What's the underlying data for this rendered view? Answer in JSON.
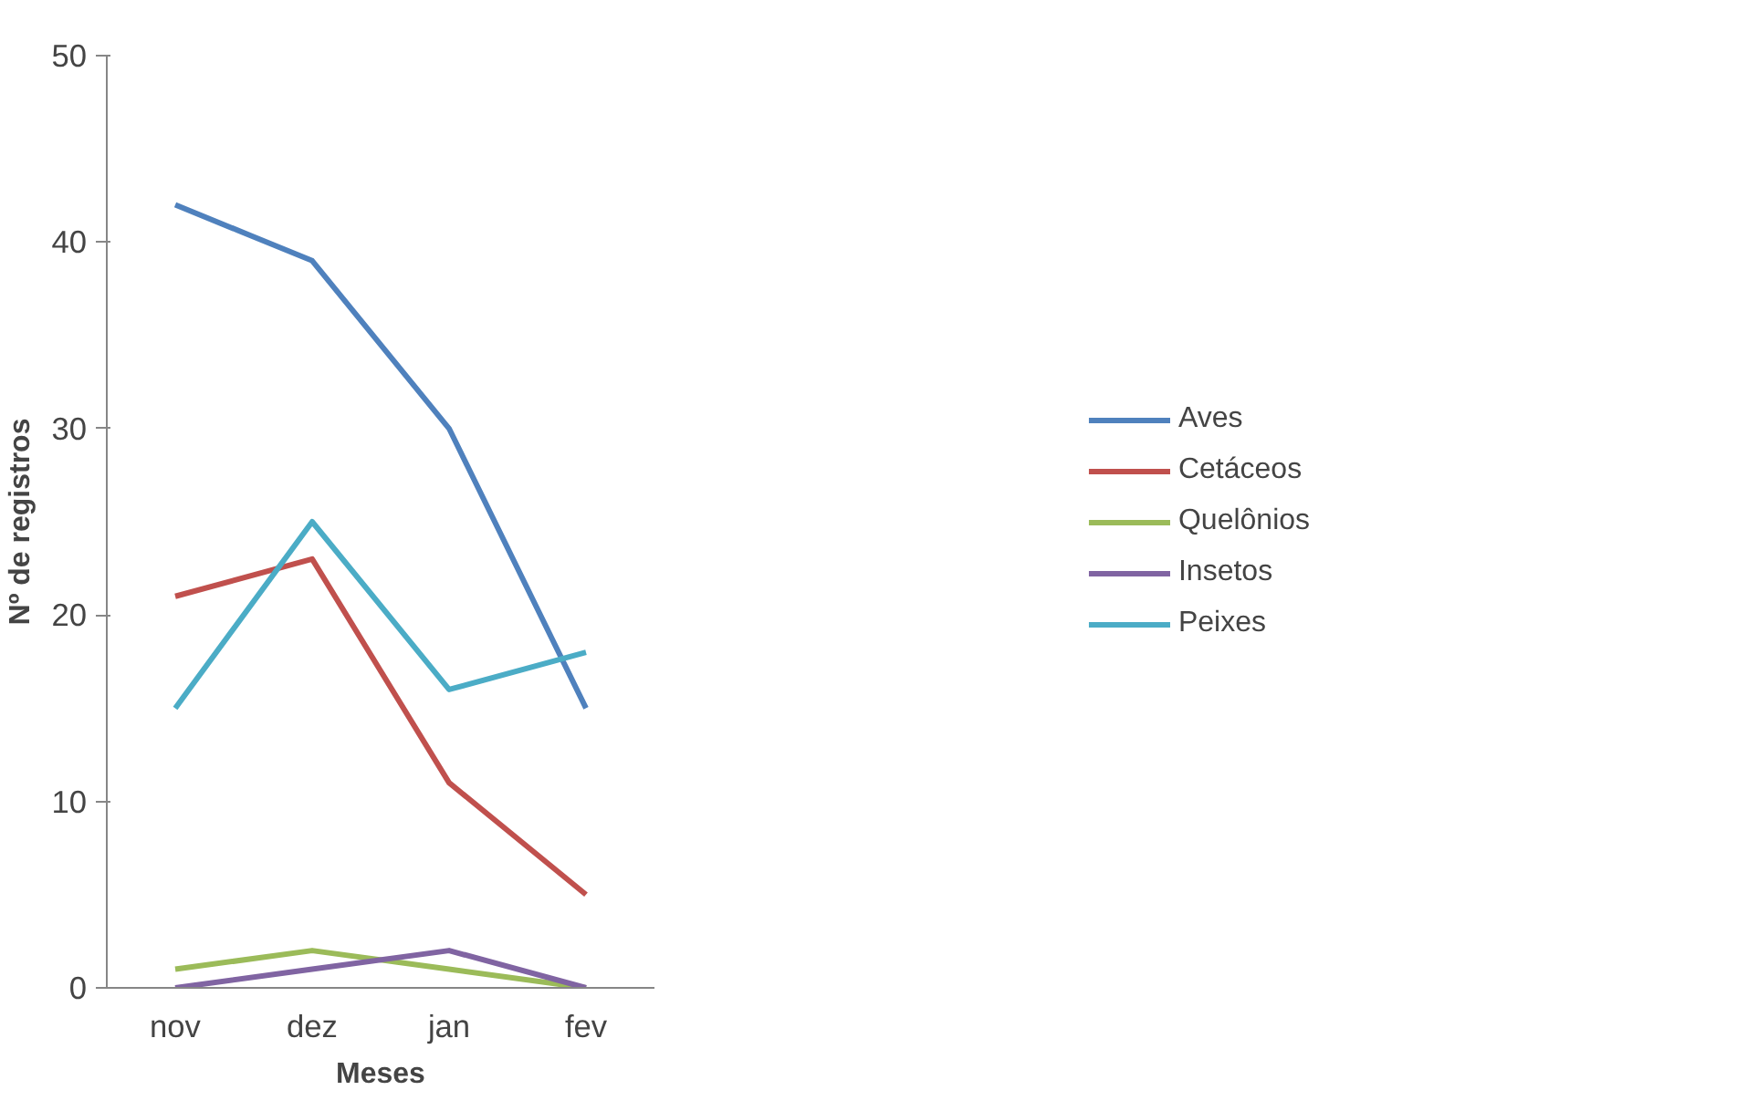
{
  "chart_data": {
    "type": "line",
    "xlabel": "Meses",
    "ylabel": "Nº de registros",
    "categories": [
      "nov",
      "dez",
      "jan",
      "fev"
    ],
    "ylim": [
      0,
      50
    ],
    "yticks": [
      0,
      10,
      20,
      30,
      40,
      50
    ],
    "grid": false,
    "legend": "right",
    "marker": "none",
    "line_style": "solid",
    "series": [
      {
        "name": "Aves",
        "color": "#4f81bd",
        "values": [
          42,
          39,
          30,
          15
        ]
      },
      {
        "name": "Cetáceos",
        "color": "#c0504d",
        "values": [
          21,
          23,
          11,
          5
        ]
      },
      {
        "name": "Quelônios",
        "color": "#9bbb59",
        "values": [
          1,
          2,
          1,
          0
        ]
      },
      {
        "name": "Insetos",
        "color": "#8064a2",
        "values": [
          0,
          1,
          2,
          0
        ]
      },
      {
        "name": "Peixes",
        "color": "#4bacc6",
        "values": [
          15,
          25,
          16,
          18
        ]
      }
    ]
  }
}
